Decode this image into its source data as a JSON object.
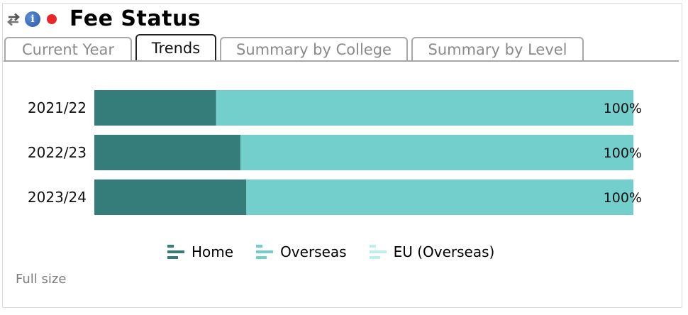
{
  "header": {
    "title": "Fee Status",
    "refresh_icon": "refresh-icon",
    "info_icon": "info-icon",
    "info_glyph": "i",
    "status_color": "#e8272b"
  },
  "tabs": [
    {
      "label": "Current Year",
      "active": false
    },
    {
      "label": "Trends",
      "active": true
    },
    {
      "label": "Summary by College",
      "active": false
    },
    {
      "label": "Summary by Level",
      "active": false
    }
  ],
  "chart_data": {
    "type": "bar",
    "orientation": "horizontal",
    "stacked": "percent",
    "categories": [
      "2021/22",
      "2022/23",
      "2023/24"
    ],
    "series": [
      {
        "name": "Home",
        "color": "#347d7b",
        "values": [
          22.6,
          27.1,
          28.2
        ]
      },
      {
        "name": "Overseas",
        "color": "#72cfcb",
        "values": [
          77.4,
          72.9,
          71.8
        ]
      },
      {
        "name": "EU (Overseas)",
        "color": "#bfeeee",
        "values": [
          0,
          0,
          0
        ]
      }
    ],
    "totals_labels": [
      "100%",
      "100%",
      "100%"
    ],
    "xlim": [
      0,
      100
    ],
    "grid": false,
    "legend_position": "bottom"
  },
  "footer": {
    "link_label": "Full size"
  }
}
